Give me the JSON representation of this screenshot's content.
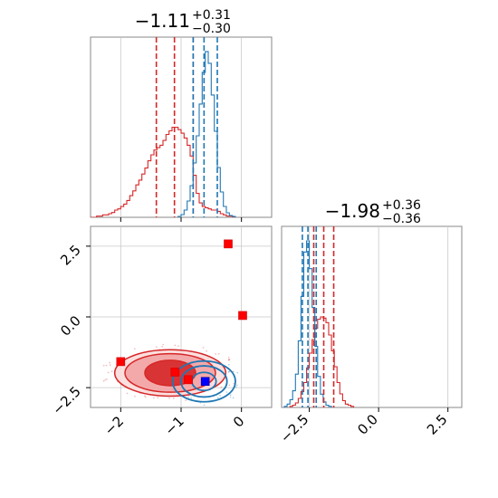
{
  "chart_data": {
    "type": "corner",
    "colors": {
      "red": "#d62728",
      "blue": "#1f77b4",
      "red_fill": "#f2a5a6",
      "red_fill_dark": "#d62728",
      "grid": "#c8c8c8",
      "axis": "#888888"
    },
    "panels": [
      {
        "id": "hist1",
        "type": "histogram",
        "title_main": "−1.11",
        "title_sup": "+0.31",
        "title_sub": "−0.30",
        "xlim": [
          -2.5,
          0.5
        ],
        "red_quantiles": [
          -1.41,
          -1.11,
          -0.8
        ],
        "blue_quantiles": [
          -0.8,
          -0.62,
          -0.4
        ],
        "red_series": {
          "edges": [
            -2.5,
            -2.45,
            -2.4,
            -2.35,
            -2.3,
            -2.25,
            -2.2,
            -2.15,
            -2.1,
            -2.05,
            -2.0,
            -1.95,
            -1.9,
            -1.85,
            -1.8,
            -1.75,
            -1.7,
            -1.65,
            -1.6,
            -1.55,
            -1.5,
            -1.45,
            -1.4,
            -1.35,
            -1.3,
            -1.25,
            -1.2,
            -1.15,
            -1.1,
            -1.05,
            -1.0,
            -0.95,
            -0.9,
            -0.85,
            -0.8,
            -0.75,
            -0.7,
            -0.65,
            -0.6,
            -0.55,
            -0.5,
            -0.45,
            -0.4,
            -0.35,
            -0.3,
            -0.25,
            -0.2,
            -0.15,
            -0.1
          ],
          "counts": [
            0,
            0,
            1,
            1,
            2,
            2,
            3,
            4,
            6,
            7,
            9,
            11,
            14,
            18,
            22,
            27,
            31,
            36,
            41,
            47,
            52,
            56,
            58,
            60,
            64,
            69,
            72,
            75,
            75,
            73,
            70,
            66,
            60,
            51,
            35,
            20,
            12,
            9,
            8,
            7,
            6,
            6,
            5,
            3,
            2,
            1,
            1,
            0
          ]
        },
        "blue_series": {
          "edges": [
            -1.05,
            -1.0,
            -0.95,
            -0.9,
            -0.85,
            -0.8,
            -0.75,
            -0.7,
            -0.65,
            -0.6,
            -0.55,
            -0.5,
            -0.45,
            -0.4,
            -0.35,
            -0.3,
            -0.25,
            -0.2,
            -0.15,
            -0.1
          ],
          "counts": [
            1,
            3,
            8,
            18,
            35,
            60,
            90,
            125,
            160,
            183,
            170,
            135,
            95,
            55,
            28,
            12,
            5,
            2,
            1
          ]
        }
      },
      {
        "id": "hist2",
        "type": "histogram",
        "title_main": "−1.98",
        "title_sup": "+0.36",
        "title_sub": "−0.36",
        "xlim": [
          -3.5,
          3.0
        ],
        "xticks": [
          -2.5,
          0.0,
          2.5
        ],
        "xtick_labels": [
          "−2.5",
          "0.0",
          "2.5"
        ],
        "red_quantiles": [
          -2.34,
          -1.98,
          -1.62
        ],
        "blue_quantiles": [
          -2.75,
          -2.55,
          -2.25
        ],
        "red_series": {
          "edges": [
            -3.2,
            -3.1,
            -3.0,
            -2.9,
            -2.8,
            -2.7,
            -2.6,
            -2.5,
            -2.4,
            -2.3,
            -2.2,
            -2.1,
            -2.0,
            -1.9,
            -1.8,
            -1.7,
            -1.6,
            -1.5,
            -1.4,
            -1.3,
            -1.2,
            -1.1,
            -1.0,
            -0.9
          ],
          "counts": [
            1,
            2,
            4,
            8,
            14,
            22,
            35,
            48,
            60,
            70,
            78,
            80,
            79,
            75,
            64,
            50,
            36,
            22,
            12,
            6,
            3,
            2,
            1
          ]
        },
        "blue_series": {
          "edges": [
            -3.4,
            -3.3,
            -3.2,
            -3.1,
            -3.0,
            -2.9,
            -2.8,
            -2.7,
            -2.6,
            -2.5,
            -2.4,
            -2.3,
            -2.2,
            -2.1,
            -2.0,
            -1.9,
            -1.8,
            -1.7
          ],
          "counts": [
            1,
            3,
            7,
            15,
            30,
            60,
            100,
            140,
            150,
            125,
            90,
            55,
            28,
            12,
            5,
            2,
            1
          ]
        }
      },
      {
        "id": "scatter",
        "type": "2d-contour",
        "xlim": [
          -2.5,
          0.5
        ],
        "ylim": [
          -3.2,
          3.2
        ],
        "xticks": [
          -2,
          -1,
          0
        ],
        "xtick_labels": [
          "−2",
          "−1",
          "0"
        ],
        "yticks": [
          -2.5,
          0.0,
          2.5
        ],
        "ytick_labels": [
          "−2.5",
          "0.0",
          "2.5"
        ],
        "red_contours": [
          {
            "center": [
              -1.18,
              -1.98
            ],
            "rx": 0.42,
            "ry": 0.45
          },
          {
            "center": [
              -1.18,
              -1.98
            ],
            "rx": 0.75,
            "ry": 0.68
          },
          {
            "center": [
              -1.18,
              -1.98
            ],
            "rx": 0.92,
            "ry": 0.82
          }
        ],
        "blue_contours": [
          {
            "center": [
              -0.62,
              -2.28
            ],
            "rx": 0.2,
            "ry": 0.32
          },
          {
            "center": [
              -0.62,
              -2.28
            ],
            "rx": 0.38,
            "ry": 0.55
          },
          {
            "center": [
              -0.62,
              -2.28
            ],
            "rx": 0.52,
            "ry": 0.72
          }
        ],
        "red_markers": [
          {
            "x": -0.22,
            "y": 2.58
          },
          {
            "x": 0.02,
            "y": 0.05
          },
          {
            "x": -2.0,
            "y": -1.58
          },
          {
            "x": -1.1,
            "y": -1.95
          },
          {
            "x": -0.88,
            "y": -2.22
          }
        ],
        "blue_markers": [
          {
            "x": -0.6,
            "y": -2.28
          }
        ]
      }
    ]
  }
}
